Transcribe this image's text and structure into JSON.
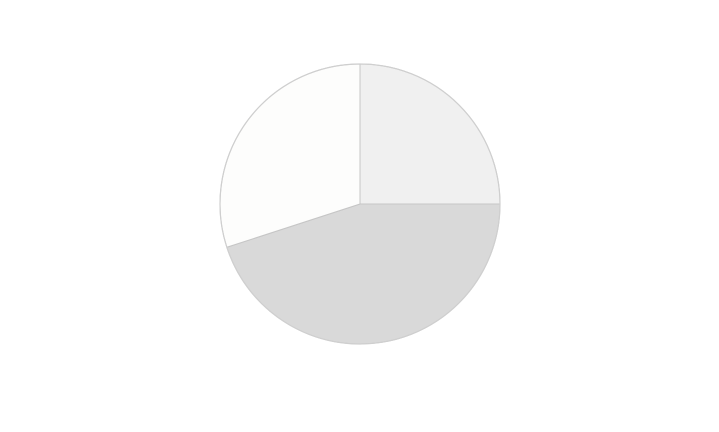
{
  "chart_data": {
    "type": "pie",
    "title": "",
    "start_angle": "12 o'clock",
    "direction": "clockwise",
    "slices": [
      {
        "label": "",
        "value": 25,
        "color": "#f0f0f0"
      },
      {
        "label": "",
        "value": 45,
        "color": "#d9d9d9"
      },
      {
        "label": "",
        "value": 30,
        "color": "#fdfdfc"
      }
    ],
    "legend": "none",
    "data_labels": false
  }
}
